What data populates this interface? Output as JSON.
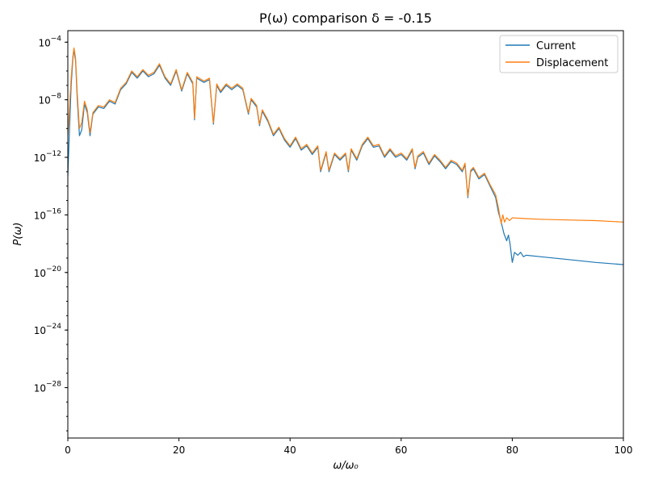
{
  "chart_data": {
    "type": "line",
    "title": "P(ω) comparison δ = -0.15",
    "xlabel": "ω/ω₀",
    "ylabel": "P(ω)",
    "xlim": [
      0,
      100
    ],
    "ylim_log10": [
      -31.5,
      -3.2
    ],
    "yscale": "log",
    "grid": false,
    "legend_position": "top-right",
    "x_ticks": [
      {
        "value": 0,
        "label": "0"
      },
      {
        "value": 20,
        "label": "20"
      },
      {
        "value": 40,
        "label": "40"
      },
      {
        "value": 60,
        "label": "60"
      },
      {
        "value": 80,
        "label": "80"
      },
      {
        "value": 100,
        "label": "100"
      }
    ],
    "y_ticks": [
      {
        "exp": -4,
        "base": "10",
        "sup": "−4"
      },
      {
        "exp": -8,
        "base": "10",
        "sup": "−8"
      },
      {
        "exp": -12,
        "base": "10",
        "sup": "−12"
      },
      {
        "exp": -16,
        "base": "10",
        "sup": "−16"
      },
      {
        "exp": -20,
        "base": "10",
        "sup": "−20"
      },
      {
        "exp": -24,
        "base": "10",
        "sup": "−24"
      },
      {
        "exp": -28,
        "base": "10",
        "sup": "−28"
      }
    ],
    "series": [
      {
        "name": "Current",
        "color": "#1f77b4",
        "points_log10": [
          [
            0,
            -13.3
          ],
          [
            0.3,
            -10.0
          ],
          [
            0.6,
            -7.0
          ],
          [
            0.9,
            -5.2
          ],
          [
            1.1,
            -4.5
          ],
          [
            1.4,
            -5.3
          ],
          [
            1.7,
            -8.0
          ],
          [
            2.1,
            -10.5
          ],
          [
            2.5,
            -10.1
          ],
          [
            3.0,
            -8.3
          ],
          [
            3.5,
            -8.9
          ],
          [
            4.0,
            -10.5
          ],
          [
            4.5,
            -9.0
          ],
          [
            5.5,
            -8.5
          ],
          [
            6.5,
            -8.6
          ],
          [
            7.5,
            -8.1
          ],
          [
            8.5,
            -8.3
          ],
          [
            9.5,
            -7.3
          ],
          [
            10.5,
            -6.9
          ],
          [
            11.5,
            -6.1
          ],
          [
            12.5,
            -6.5
          ],
          [
            13.5,
            -6.0
          ],
          [
            14.5,
            -6.4
          ],
          [
            15.5,
            -6.2
          ],
          [
            16.5,
            -5.6
          ],
          [
            17.5,
            -6.5
          ],
          [
            18.5,
            -7.0
          ],
          [
            19.5,
            -6.0
          ],
          [
            20.5,
            -7.4
          ],
          [
            21.5,
            -6.2
          ],
          [
            22.5,
            -6.9
          ],
          [
            22.8,
            -9.4
          ],
          [
            23.2,
            -6.5
          ],
          [
            24.5,
            -6.8
          ],
          [
            25.5,
            -6.6
          ],
          [
            26.2,
            -9.7
          ],
          [
            26.8,
            -7.0
          ],
          [
            27.5,
            -7.5
          ],
          [
            28.5,
            -7.0
          ],
          [
            29.5,
            -7.3
          ],
          [
            30.5,
            -7.0
          ],
          [
            31.5,
            -7.3
          ],
          [
            32.5,
            -9.0
          ],
          [
            33.0,
            -8.0
          ],
          [
            34.0,
            -8.5
          ],
          [
            34.5,
            -9.8
          ],
          [
            35.0,
            -8.8
          ],
          [
            36.0,
            -9.5
          ],
          [
            37.0,
            -10.5
          ],
          [
            38.0,
            -10.0
          ],
          [
            39.0,
            -10.8
          ],
          [
            40.0,
            -11.3
          ],
          [
            41.0,
            -10.7
          ],
          [
            42.0,
            -11.5
          ],
          [
            43.0,
            -11.2
          ],
          [
            44.0,
            -11.8
          ],
          [
            45.0,
            -11.3
          ],
          [
            45.5,
            -13.0
          ],
          [
            46.5,
            -11.7
          ],
          [
            47.0,
            -13.0
          ],
          [
            48.0,
            -11.8
          ],
          [
            49.0,
            -12.2
          ],
          [
            50.0,
            -11.8
          ],
          [
            50.5,
            -13.0
          ],
          [
            51.0,
            -11.5
          ],
          [
            52.0,
            -12.2
          ],
          [
            53.0,
            -11.2
          ],
          [
            54.0,
            -10.7
          ],
          [
            55.0,
            -11.3
          ],
          [
            56.0,
            -11.2
          ],
          [
            57.0,
            -12.0
          ],
          [
            58.0,
            -11.5
          ],
          [
            59.0,
            -12.0
          ],
          [
            60.0,
            -11.8
          ],
          [
            61.0,
            -12.2
          ],
          [
            62.0,
            -11.5
          ],
          [
            62.5,
            -12.8
          ],
          [
            63.0,
            -12.0
          ],
          [
            64.0,
            -11.7
          ],
          [
            65.0,
            -12.5
          ],
          [
            66.0,
            -11.9
          ],
          [
            67.0,
            -12.3
          ],
          [
            68.0,
            -12.8
          ],
          [
            69.0,
            -12.3
          ],
          [
            70.0,
            -12.5
          ],
          [
            71.0,
            -13.0
          ],
          [
            71.5,
            -12.5
          ],
          [
            72.0,
            -14.8
          ],
          [
            72.5,
            -13.0
          ],
          [
            73.0,
            -12.8
          ],
          [
            74.0,
            -13.5
          ],
          [
            75.0,
            -13.2
          ],
          [
            76.0,
            -14.0
          ],
          [
            77.0,
            -14.8
          ],
          [
            77.5,
            -15.8
          ],
          [
            78.0,
            -16.5
          ],
          [
            78.5,
            -17.3
          ],
          [
            79.0,
            -17.8
          ],
          [
            79.3,
            -17.4
          ],
          [
            79.6,
            -18.0
          ],
          [
            80.0,
            -19.3
          ],
          [
            80.4,
            -18.6
          ],
          [
            81.0,
            -18.8
          ],
          [
            81.5,
            -18.6
          ],
          [
            82.0,
            -18.9
          ],
          [
            82.5,
            -18.8
          ],
          [
            85.0,
            -18.9
          ],
          [
            90.0,
            -19.1
          ],
          [
            95.0,
            -19.3
          ],
          [
            100.0,
            -19.45
          ]
        ]
      },
      {
        "name": "Displacement",
        "color": "#ff7f0e",
        "points_log10": [
          [
            0,
            -10.5
          ],
          [
            0.3,
            -8.5
          ],
          [
            0.6,
            -6.5
          ],
          [
            0.9,
            -5.0
          ],
          [
            1.1,
            -4.4
          ],
          [
            1.4,
            -5.1
          ],
          [
            1.7,
            -7.6
          ],
          [
            2.1,
            -10.0
          ],
          [
            2.5,
            -9.6
          ],
          [
            3.0,
            -8.1
          ],
          [
            3.5,
            -8.7
          ],
          [
            4.0,
            -10.3
          ],
          [
            4.5,
            -8.9
          ],
          [
            5.5,
            -8.4
          ],
          [
            6.5,
            -8.5
          ],
          [
            7.5,
            -8.0
          ],
          [
            8.5,
            -8.2
          ],
          [
            9.5,
            -7.2
          ],
          [
            10.5,
            -6.8
          ],
          [
            11.5,
            -6.0
          ],
          [
            12.5,
            -6.4
          ],
          [
            13.5,
            -5.9
          ],
          [
            14.5,
            -6.3
          ],
          [
            15.5,
            -6.1
          ],
          [
            16.5,
            -5.5
          ],
          [
            17.5,
            -6.4
          ],
          [
            18.5,
            -6.9
          ],
          [
            19.5,
            -5.9
          ],
          [
            20.5,
            -7.3
          ],
          [
            21.5,
            -6.1
          ],
          [
            22.5,
            -6.8
          ],
          [
            22.8,
            -9.3
          ],
          [
            23.2,
            -6.4
          ],
          [
            24.5,
            -6.7
          ],
          [
            25.5,
            -6.5
          ],
          [
            26.2,
            -9.6
          ],
          [
            26.8,
            -6.9
          ],
          [
            27.5,
            -7.4
          ],
          [
            28.5,
            -6.9
          ],
          [
            29.5,
            -7.2
          ],
          [
            30.5,
            -6.9
          ],
          [
            31.5,
            -7.2
          ],
          [
            32.5,
            -8.9
          ],
          [
            33.0,
            -7.9
          ],
          [
            34.0,
            -8.4
          ],
          [
            34.5,
            -9.7
          ],
          [
            35.0,
            -8.7
          ],
          [
            36.0,
            -9.4
          ],
          [
            37.0,
            -10.4
          ],
          [
            38.0,
            -9.9
          ],
          [
            39.0,
            -10.7
          ],
          [
            40.0,
            -11.2
          ],
          [
            41.0,
            -10.6
          ],
          [
            42.0,
            -11.4
          ],
          [
            43.0,
            -11.1
          ],
          [
            44.0,
            -11.7
          ],
          [
            45.0,
            -11.2
          ],
          [
            45.5,
            -12.9
          ],
          [
            46.5,
            -11.6
          ],
          [
            47.0,
            -12.9
          ],
          [
            48.0,
            -11.7
          ],
          [
            49.0,
            -12.1
          ],
          [
            50.0,
            -11.7
          ],
          [
            50.5,
            -12.9
          ],
          [
            51.0,
            -11.4
          ],
          [
            52.0,
            -12.1
          ],
          [
            53.0,
            -11.1
          ],
          [
            54.0,
            -10.6
          ],
          [
            55.0,
            -11.2
          ],
          [
            56.0,
            -11.1
          ],
          [
            57.0,
            -11.9
          ],
          [
            58.0,
            -11.4
          ],
          [
            59.0,
            -11.9
          ],
          [
            60.0,
            -11.7
          ],
          [
            61.0,
            -12.1
          ],
          [
            62.0,
            -11.4
          ],
          [
            62.5,
            -12.7
          ],
          [
            63.0,
            -11.9
          ],
          [
            64.0,
            -11.6
          ],
          [
            65.0,
            -12.4
          ],
          [
            66.0,
            -11.8
          ],
          [
            67.0,
            -12.2
          ],
          [
            68.0,
            -12.7
          ],
          [
            69.0,
            -12.2
          ],
          [
            70.0,
            -12.4
          ],
          [
            71.0,
            -12.9
          ],
          [
            71.5,
            -12.4
          ],
          [
            72.0,
            -14.7
          ],
          [
            72.5,
            -12.9
          ],
          [
            73.0,
            -12.7
          ],
          [
            74.0,
            -13.4
          ],
          [
            75.0,
            -13.1
          ],
          [
            76.0,
            -13.9
          ],
          [
            77.0,
            -14.6
          ],
          [
            77.5,
            -15.5
          ],
          [
            78.0,
            -16.6
          ],
          [
            78.3,
            -16.0
          ],
          [
            78.6,
            -16.5
          ],
          [
            79.0,
            -16.2
          ],
          [
            79.5,
            -16.4
          ],
          [
            80.0,
            -16.2
          ],
          [
            82.0,
            -16.25
          ],
          [
            85.0,
            -16.3
          ],
          [
            90.0,
            -16.35
          ],
          [
            95.0,
            -16.4
          ],
          [
            100.0,
            -16.5
          ]
        ]
      }
    ]
  }
}
